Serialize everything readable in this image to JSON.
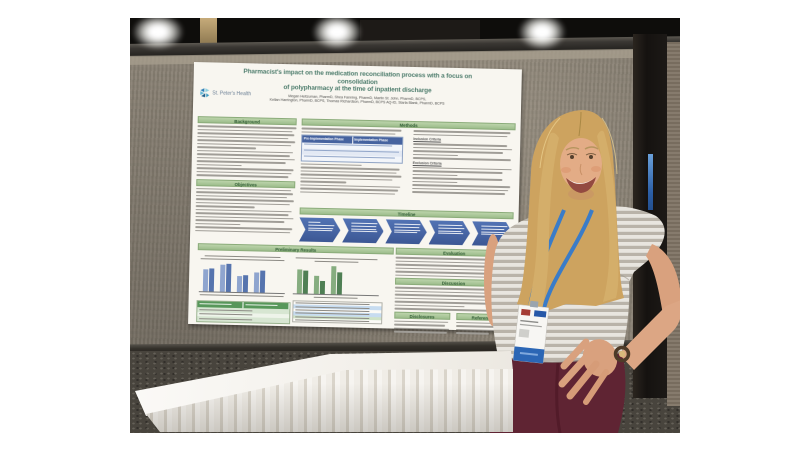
{
  "poster": {
    "title_line1": "Pharmacist's impact on the medication reconciliation process with a focus on consolidation",
    "title_line2": "of polypharmacy at the time of inpatient discharge",
    "authors_line1": "Megan Heitzuman, PharmD, Shea Fanning, PharmD, Martin St. John, PharmD, BCPS,",
    "authors_line2": "Kellan Harrington, PharmD, BCPS, Thomas Richardson, PharmD, BCPS AQ-ID, Starla Blank, PharmD, BCPS",
    "logo_text": "St. Peter's Health",
    "sections": {
      "background": "Background",
      "objectives": "Objectives",
      "methods": "Methods",
      "timeline": "Timeline",
      "preliminary_results": "Preliminary Results",
      "evaluation": "Evaluation",
      "discussion": "Discussion",
      "disclosures": "Disclosures",
      "references": "References"
    },
    "methods_table": {
      "col1_header": "Pre-Implementation Phase",
      "col2_header": "Implementation Phase"
    },
    "criteria_labels": {
      "inclusion": "Inclusion Criteria",
      "exclusion": "Exclusion Criteria"
    },
    "colors": {
      "section_header_green": "#9dbd8c",
      "methods_table_blue": "#46639f",
      "chevron_blue": "#46639f",
      "title_teal": "#4e7d6d"
    }
  },
  "chart_data": [
    {
      "type": "bar",
      "title": "",
      "categories": [
        "",
        "",
        "",
        ""
      ],
      "series": [
        {
          "name": "",
          "color": "#8fa5cf",
          "values": [
            72,
            88,
            52,
            66
          ]
        },
        {
          "name": "",
          "color": "#5674ae",
          "values": [
            76,
            94,
            56,
            72
          ]
        }
      ],
      "ylim": [
        0,
        100
      ],
      "legend_position": "bottom",
      "grid": false
    },
    {
      "type": "bar",
      "title": "",
      "categories": [
        "",
        "",
        ""
      ],
      "series": [
        {
          "name": "",
          "color": "#86ad80",
          "values": [
            78,
            58,
            94
          ]
        },
        {
          "name": "",
          "color": "#4f7f54",
          "values": [
            76,
            44,
            74
          ]
        }
      ],
      "ylim": [
        0,
        100
      ],
      "legend_position": "bottom",
      "grid": false
    }
  ]
}
